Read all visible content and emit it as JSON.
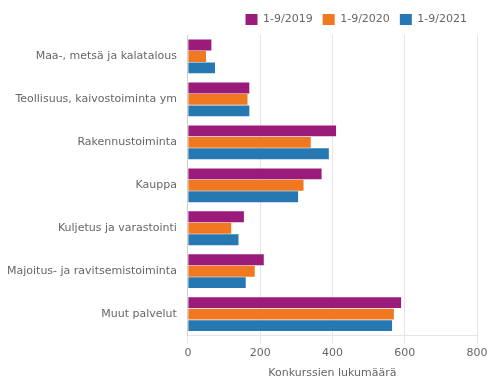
{
  "chart_data": {
    "type": "bar",
    "orientation": "horizontal",
    "categories": [
      "Muut palvelut",
      "Majoitus- ja ravitsemistoiminta",
      "Kuljetus ja varastointi",
      "Kauppa",
      "Rakennustoiminta",
      "Teollisuus, kaivostoiminta ym",
      "Maa-, metsä ja kalatalous"
    ],
    "series": [
      {
        "name": "1-9/2019",
        "color": "#9B1B7B",
        "values": [
          590,
          210,
          155,
          370,
          410,
          170,
          65
        ]
      },
      {
        "name": "1-9/2020",
        "color": "#F07820",
        "values": [
          570,
          185,
          120,
          320,
          340,
          165,
          50
        ]
      },
      {
        "name": "1-9/2021",
        "color": "#2678B2",
        "values": [
          565,
          160,
          140,
          305,
          390,
          170,
          75
        ]
      }
    ],
    "xlabel": "Konkurssien lukumäärä",
    "xlim": [
      0,
      800
    ],
    "xticks": [
      0,
      200,
      400,
      600,
      800
    ],
    "grid": true,
    "legend": "upper right"
  }
}
